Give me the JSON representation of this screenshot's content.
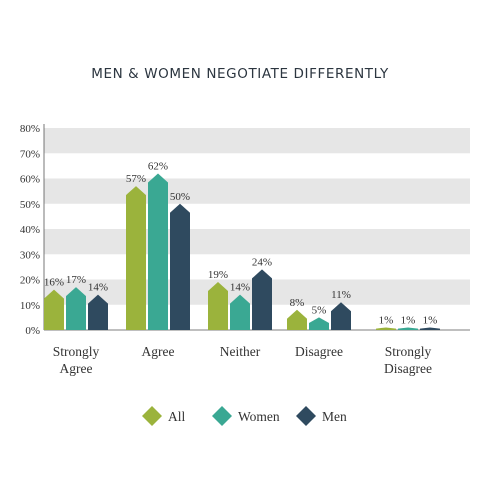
{
  "colors": {
    "all": "#9bb33c",
    "women": "#3aa893",
    "men": "#2f4a5f",
    "band": "#e6e6e6",
    "text": "#333333"
  },
  "chart_data": {
    "type": "bar",
    "title": "MEN & WOMEN NEGOTIATE DIFFERENTLY",
    "categories": [
      "Strongly Agree",
      "Agree",
      "Neither",
      "Disagree",
      "Strongly Disagree"
    ],
    "series": [
      {
        "name": "All",
        "values": [
          16,
          57,
          19,
          8,
          1
        ],
        "labels": [
          "16%",
          "57%",
          "19%",
          "8%",
          "1%"
        ]
      },
      {
        "name": "Women",
        "values": [
          17,
          62,
          14,
          5,
          1
        ],
        "labels": [
          "17%",
          "62%",
          "14%",
          "5%",
          "1%"
        ]
      },
      {
        "name": "Men",
        "values": [
          14,
          50,
          24,
          11,
          1
        ],
        "labels": [
          "14%",
          "50%",
          "24%",
          "11%",
          "1%"
        ]
      }
    ],
    "ylim": [
      0,
      80
    ],
    "yticks": [
      "0%",
      "10%",
      "20%",
      "30%",
      "40%",
      "50%",
      "60%",
      "70%",
      "80%"
    ],
    "legend_position": "bottom-center",
    "grid": "alternating bands"
  }
}
